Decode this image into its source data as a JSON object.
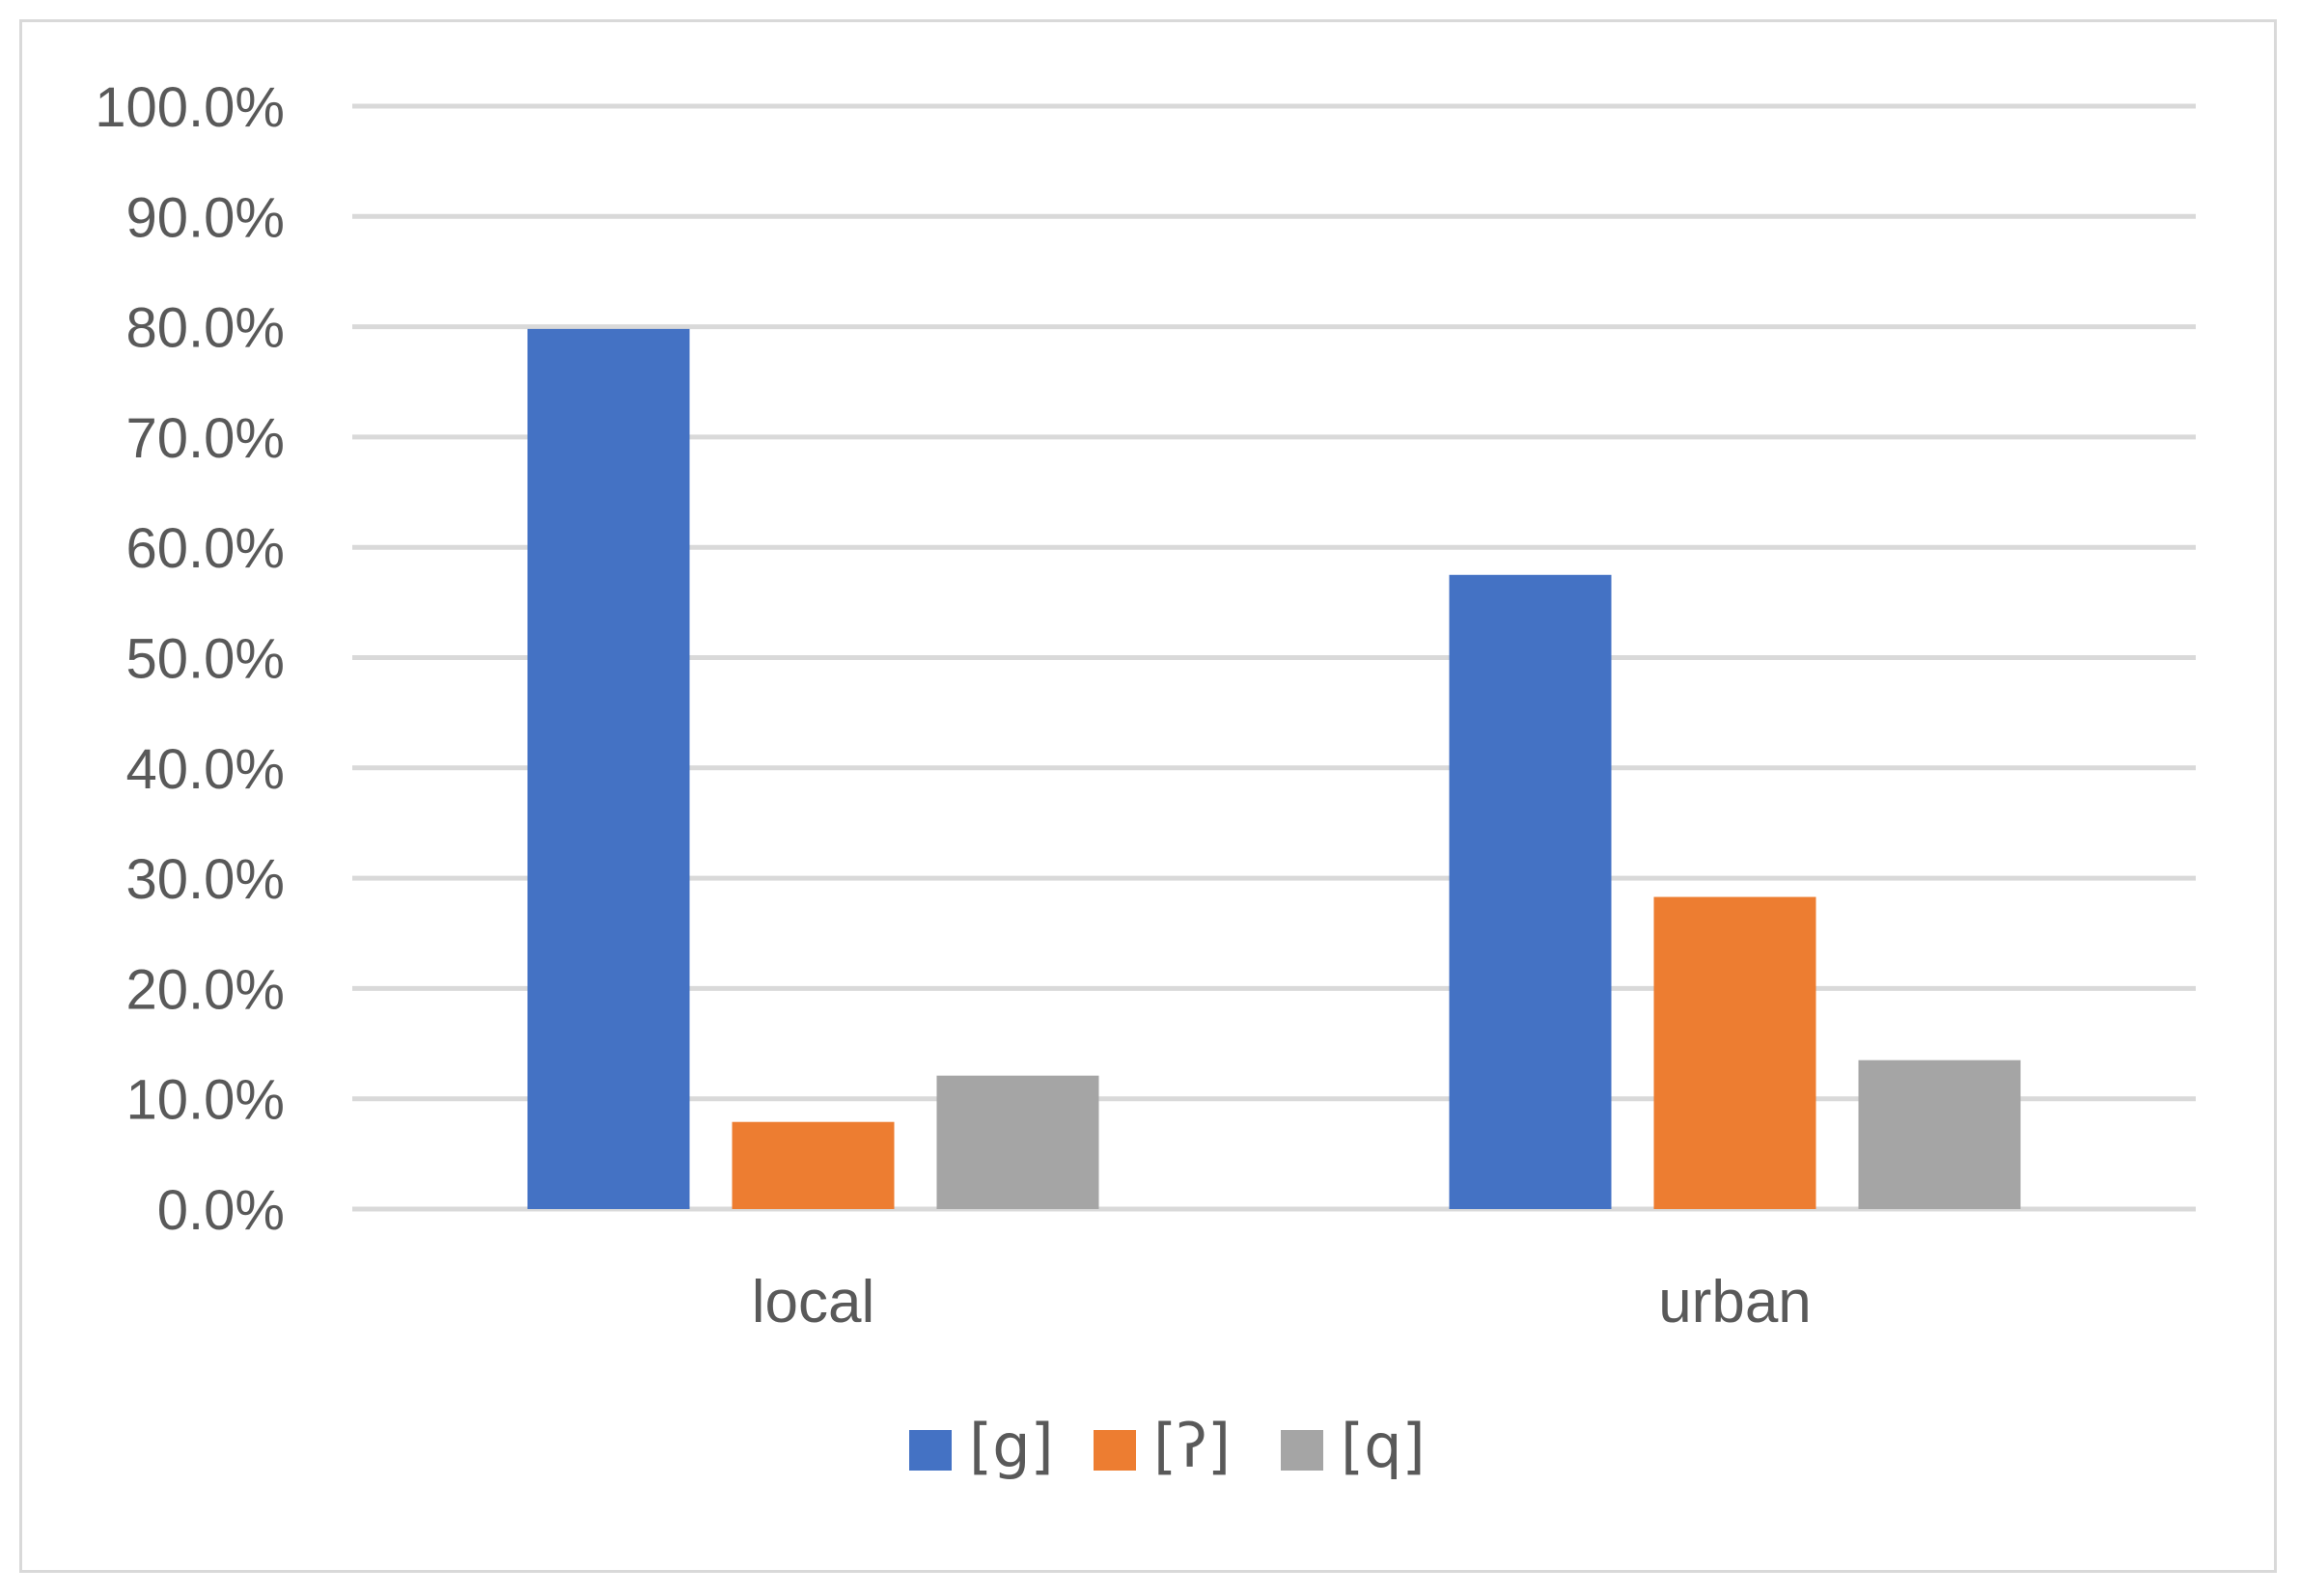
{
  "chart_data": {
    "type": "bar",
    "categories": [
      "local",
      "urban"
    ],
    "series": [
      {
        "name": "[g]",
        "values": [
          79.8,
          57.5
        ],
        "color": "#4472c4"
      },
      {
        "name": "[ʔ]",
        "values": [
          7.9,
          28.3
        ],
        "color": "#ed7d31"
      },
      {
        "name": "[q]",
        "values": [
          12.1,
          13.5
        ],
        "color": "#a5a5a5"
      }
    ],
    "ylim": [
      0,
      100
    ],
    "ytick_labels": [
      "0.0%",
      "10.0%",
      "20.0%",
      "30.0%",
      "40.0%",
      "50.0%",
      "60.0%",
      "70.0%",
      "80.0%",
      "90.0%",
      "100.0%"
    ],
    "grid": true,
    "gridline_color": "#d9d9d9",
    "legend_position": "bottom"
  }
}
